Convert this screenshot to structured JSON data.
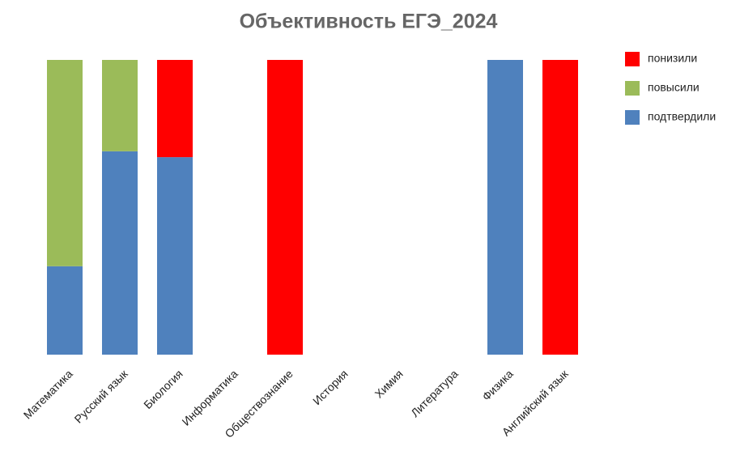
{
  "chart_data": {
    "type": "stacked_bar",
    "title": "Объективность ЕГЭ_2024",
    "categories": [
      "Математика",
      "Русский язык",
      "Биология",
      "Информатика",
      "Обществознание",
      "История",
      "Химия",
      "Литература",
      "Физика",
      "Английский язык"
    ],
    "series": [
      {
        "name": "подтвердили",
        "color": "#4f81bd",
        "values": [
          30,
          69,
          67,
          0,
          0,
          0,
          0,
          0,
          100,
          0
        ]
      },
      {
        "name": "повысили",
        "color": "#9bbb59",
        "values": [
          70,
          31,
          0,
          0,
          0,
          0,
          0,
          0,
          0,
          0
        ]
      },
      {
        "name": "понизили",
        "color": "#ff0000",
        "values": [
          0,
          0,
          33,
          0,
          100,
          0,
          0,
          0,
          0,
          100
        ]
      }
    ],
    "ylim": [
      0,
      100
    ],
    "legend": "right"
  }
}
